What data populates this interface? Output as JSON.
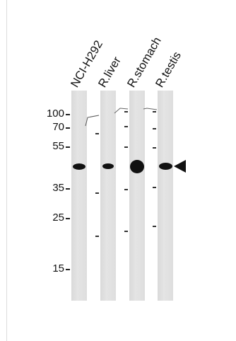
{
  "lanes": [
    {
      "label": "NCI-H292"
    },
    {
      "label": "R.liver"
    },
    {
      "label": "R.stomach"
    },
    {
      "label": "R.testis"
    }
  ],
  "markers": [
    "100",
    "70",
    "55",
    "35",
    "25",
    "15"
  ],
  "arrow_icon": "left-pointing-triangle"
}
